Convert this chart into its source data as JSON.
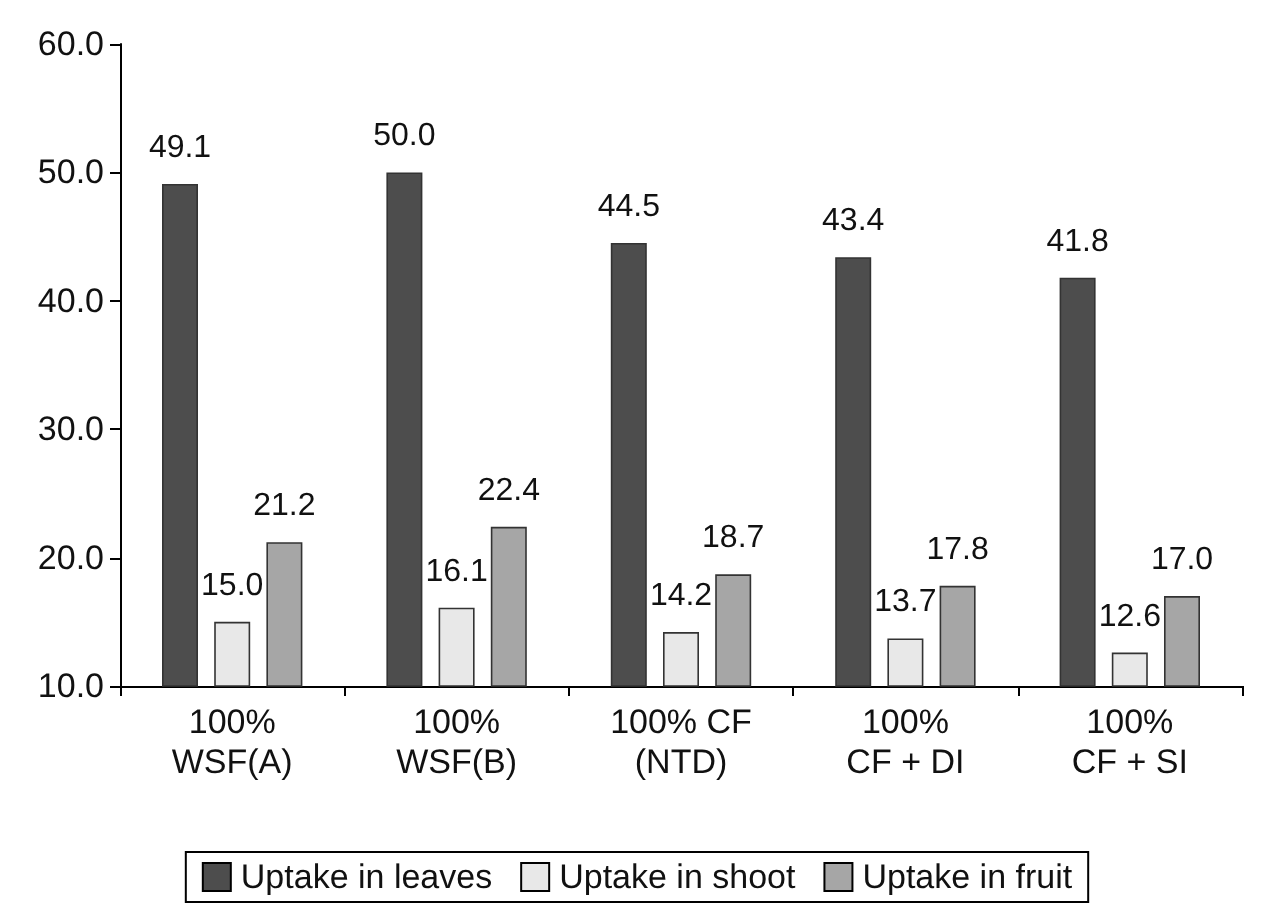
{
  "chart_data": {
    "type": "bar",
    "categories": [
      "100%\nWSF(A)",
      "100%\nWSF(B)",
      "100% CF\n(NTD)",
      "100%\nCF + DI",
      "100%\nCF + SI"
    ],
    "series": [
      {
        "name": "Uptake in leaves",
        "color": "#4d4d4d",
        "values": [
          49.1,
          50.0,
          44.5,
          43.4,
          41.8
        ],
        "value_labels": [
          "49.1",
          "50.0",
          "44.5",
          "43.4",
          "41.8"
        ]
      },
      {
        "name": "Uptake in shoot",
        "color": "#e8e8e8",
        "values": [
          15.0,
          16.1,
          14.2,
          13.7,
          12.6
        ],
        "value_labels": [
          "15.0",
          "16.1",
          "14.2",
          "13.7",
          "12.6"
        ]
      },
      {
        "name": "Uptake in fruit",
        "color": "#a6a6a6",
        "values": [
          21.2,
          22.4,
          18.7,
          17.8,
          17.0
        ],
        "value_labels": [
          "21.2",
          "22.4",
          "18.7",
          "17.8",
          "17.0"
        ]
      }
    ],
    "ylim": [
      10,
      60
    ],
    "yticks": [
      {
        "value": 10,
        "label": "10.0"
      },
      {
        "value": 20,
        "label": "20.0"
      },
      {
        "value": 30,
        "label": "30.0"
      },
      {
        "value": 40,
        "label": "40.0"
      },
      {
        "value": 50,
        "label": "50.0"
      },
      {
        "value": 60,
        "label": "60.0"
      }
    ],
    "grid": false,
    "legend": "bottom"
  }
}
